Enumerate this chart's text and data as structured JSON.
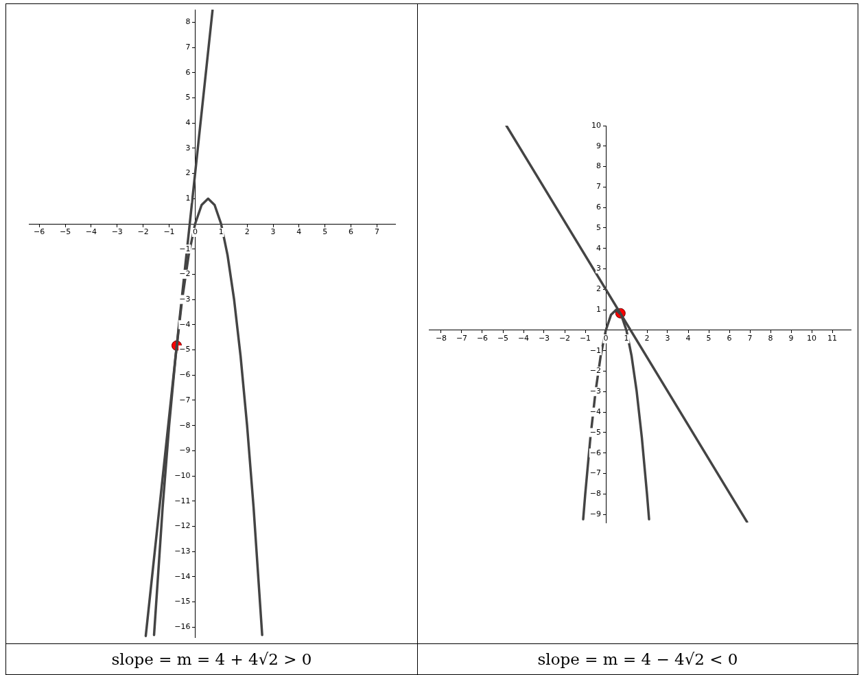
{
  "chart_data": [
    {
      "type": "line",
      "annotations": [
        "slope = m = 4 + 4√2 > 0"
      ],
      "xlim": [
        -6.4,
        7.7
      ],
      "ylim": [
        -16.4,
        8.5
      ],
      "xticks": [
        -6,
        -5,
        -4,
        -3,
        -2,
        -1,
        0,
        1,
        2,
        3,
        4,
        5,
        6,
        7
      ],
      "yticks": [
        -16,
        -15,
        -14,
        -13,
        -12,
        -11,
        -10,
        -9,
        -8,
        -7,
        -6,
        -5,
        -4,
        -3,
        -2,
        -1,
        1,
        2,
        3,
        4,
        5,
        6,
        7,
        8
      ],
      "grid": false,
      "legend": false,
      "series": [
        {
          "marker": "none",
          "color": "#444444",
          "x": [
            -1.58,
            -1.25,
            -1,
            -0.75,
            -0.5,
            -0.25,
            0,
            0.25,
            0.5,
            0.75,
            1,
            1.25,
            1.5,
            1.75,
            2,
            2.25,
            2.58
          ],
          "values": [
            -16.31,
            -11.25,
            -8,
            -5.25,
            -3,
            -1.25,
            0,
            0.75,
            1,
            0.75,
            0,
            -1.25,
            -3,
            -5.25,
            -8,
            -11.25,
            -16.31
          ]
        },
        {
          "marker": "none",
          "color": "#444444",
          "x": [
            -1.9,
            0.67
          ],
          "values": [
            -16.35,
            8.47
          ]
        },
        {
          "type": "scatter",
          "marker": "circle",
          "color": "#ff0000",
          "x": [
            -0.71
          ],
          "values": [
            -4.83
          ]
        }
      ]
    },
    {
      "type": "line",
      "annotations": [
        "slope = m = 4 − 4√2 < 0"
      ],
      "xlim": [
        -8.6,
        11.9
      ],
      "ylim": [
        -9.4,
        10
      ],
      "xticks": [
        -8,
        -7,
        -6,
        -5,
        -4,
        -3,
        -2,
        -1,
        0,
        1,
        2,
        3,
        4,
        5,
        6,
        7,
        8,
        9,
        10,
        11
      ],
      "yticks": [
        -9,
        -8,
        -7,
        -6,
        -5,
        -4,
        -3,
        -2,
        -1,
        1,
        2,
        3,
        4,
        5,
        6,
        7,
        8,
        9,
        10
      ],
      "grid": false,
      "legend": false,
      "series": [
        {
          "marker": "none",
          "color": "#444444",
          "x": [
            -1.1,
            -1,
            -0.75,
            -0.5,
            -0.25,
            0,
            0.25,
            0.5,
            0.75,
            1,
            1.25,
            1.5,
            1.75,
            2,
            2.1
          ],
          "values": [
            -9.24,
            -8,
            -5.25,
            -3,
            -1.25,
            0,
            0.75,
            1,
            0.75,
            0,
            -1.25,
            -3,
            -5.25,
            -8,
            -9.24
          ]
        },
        {
          "marker": "none",
          "color": "#444444",
          "x": [
            -4.83,
            6.86
          ],
          "values": [
            10,
            -9.37
          ]
        },
        {
          "type": "scatter",
          "marker": "circle",
          "color": "#ff0000",
          "x": [
            0.71
          ],
          "values": [
            0.83
          ]
        }
      ]
    }
  ]
}
